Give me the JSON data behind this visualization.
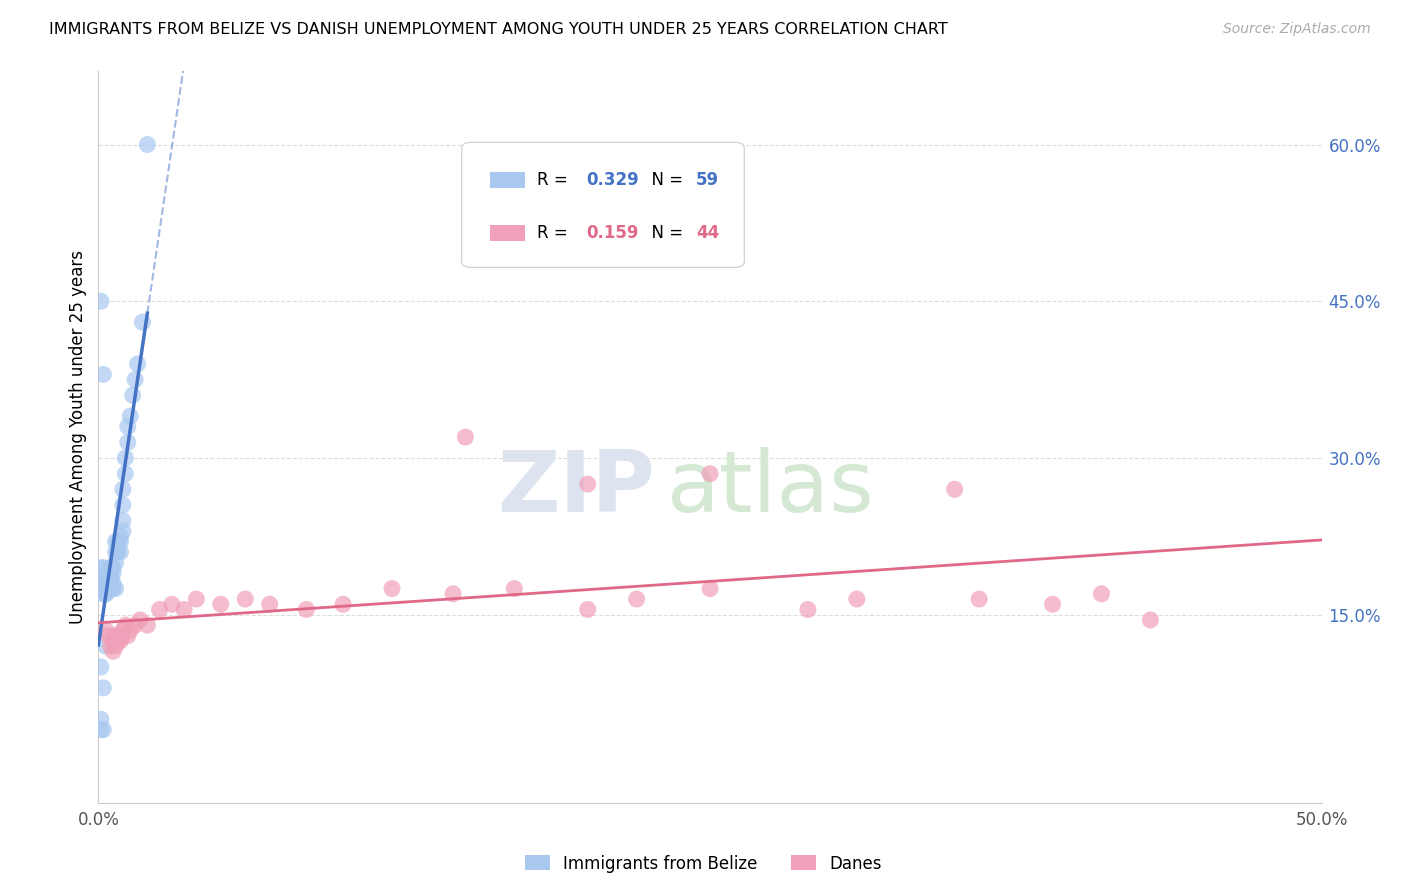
{
  "title": "IMMIGRANTS FROM BELIZE VS DANISH UNEMPLOYMENT AMONG YOUTH UNDER 25 YEARS CORRELATION CHART",
  "source": "Source: ZipAtlas.com",
  "ylabel": "Unemployment Among Youth under 25 years",
  "legend_labels": [
    "Immigrants from Belize",
    "Danes"
  ],
  "r_belize": 0.329,
  "n_belize": 59,
  "r_danes": 0.159,
  "n_danes": 44,
  "color_belize_fill": "#a8c8f0",
  "color_belize_line": "#4472c4",
  "color_danes_fill": "#f0a0b8",
  "color_danes_line": "#e06888",
  "xlim": [
    0.0,
    0.5
  ],
  "ylim": [
    -0.03,
    0.67
  ],
  "plot_ylim": [
    0.0,
    0.65
  ],
  "xticks": [
    0.0,
    0.1,
    0.2,
    0.3,
    0.4,
    0.5
  ],
  "xticklabels": [
    "0.0%",
    "",
    "",
    "",
    "",
    "50.0%"
  ],
  "yticks_right": [
    0.15,
    0.3,
    0.45,
    0.6
  ],
  "yticklabels_right": [
    "15.0%",
    "30.0%",
    "45.0%",
    "60.0%"
  ],
  "belize_x": [
    0.001,
    0.001,
    0.001,
    0.001,
    0.002,
    0.002,
    0.002,
    0.002,
    0.002,
    0.003,
    0.003,
    0.003,
    0.003,
    0.003,
    0.004,
    0.004,
    0.004,
    0.004,
    0.005,
    0.005,
    0.005,
    0.005,
    0.005,
    0.006,
    0.006,
    0.006,
    0.006,
    0.007,
    0.007,
    0.007,
    0.007,
    0.008,
    0.008,
    0.008,
    0.009,
    0.009,
    0.009,
    0.01,
    0.01,
    0.01,
    0.01,
    0.011,
    0.011,
    0.012,
    0.012,
    0.013,
    0.014,
    0.015,
    0.016,
    0.018,
    0.02,
    0.003,
    0.001,
    0.002,
    0.001,
    0.002,
    0.001,
    0.001,
    0.002
  ],
  "belize_y": [
    0.195,
    0.175,
    0.175,
    0.185,
    0.175,
    0.185,
    0.195,
    0.175,
    0.17,
    0.175,
    0.18,
    0.185,
    0.17,
    0.17,
    0.175,
    0.18,
    0.175,
    0.18,
    0.195,
    0.19,
    0.185,
    0.175,
    0.19,
    0.175,
    0.18,
    0.195,
    0.19,
    0.2,
    0.21,
    0.22,
    0.175,
    0.21,
    0.22,
    0.215,
    0.22,
    0.225,
    0.21,
    0.23,
    0.24,
    0.255,
    0.27,
    0.285,
    0.3,
    0.315,
    0.33,
    0.34,
    0.36,
    0.375,
    0.39,
    0.43,
    0.6,
    0.12,
    0.45,
    0.38,
    0.1,
    0.08,
    0.05,
    0.04,
    0.04
  ],
  "danes_x": [
    0.003,
    0.004,
    0.005,
    0.006,
    0.006,
    0.007,
    0.007,
    0.008,
    0.008,
    0.009,
    0.009,
    0.01,
    0.01,
    0.011,
    0.012,
    0.013,
    0.015,
    0.017,
    0.02,
    0.025,
    0.03,
    0.035,
    0.04,
    0.05,
    0.06,
    0.07,
    0.085,
    0.1,
    0.12,
    0.145,
    0.17,
    0.2,
    0.22,
    0.25,
    0.29,
    0.31,
    0.36,
    0.39,
    0.41,
    0.43,
    0.15,
    0.2,
    0.25,
    0.35
  ],
  "danes_y": [
    0.135,
    0.13,
    0.12,
    0.115,
    0.125,
    0.12,
    0.13,
    0.125,
    0.13,
    0.125,
    0.13,
    0.135,
    0.13,
    0.14,
    0.13,
    0.135,
    0.14,
    0.145,
    0.14,
    0.155,
    0.16,
    0.155,
    0.165,
    0.16,
    0.165,
    0.16,
    0.155,
    0.16,
    0.175,
    0.17,
    0.175,
    0.155,
    0.165,
    0.175,
    0.155,
    0.165,
    0.165,
    0.16,
    0.17,
    0.145,
    0.32,
    0.275,
    0.285,
    0.27
  ]
}
